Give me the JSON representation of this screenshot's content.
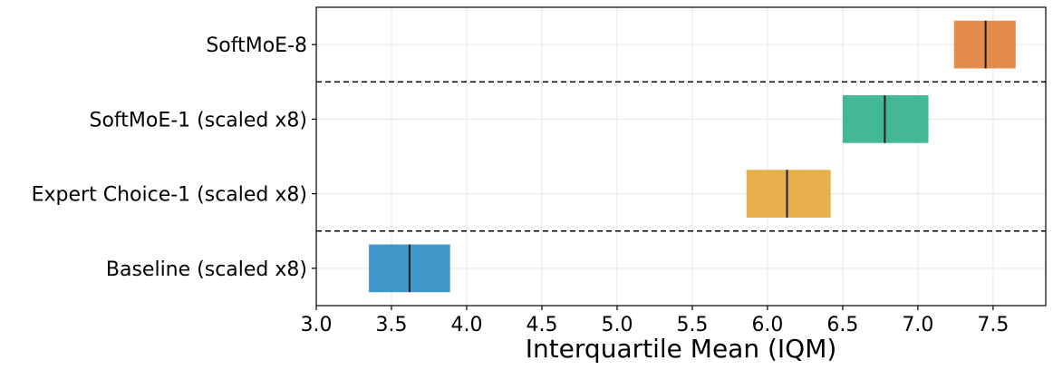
{
  "chart_data": {
    "type": "box",
    "xlabel": "Interquartile Mean (IQM)",
    "xlim": [
      3.0,
      7.85
    ],
    "xticks": [
      3.0,
      3.5,
      4.0,
      4.5,
      5.0,
      5.5,
      6.0,
      6.5,
      7.0,
      7.5
    ],
    "xtick_labels": [
      "3.0",
      "3.5",
      "4.0",
      "4.5",
      "5.0",
      "5.5",
      "6.0",
      "6.5",
      "7.0",
      "7.5"
    ],
    "grid": true,
    "categories": [
      "SoftMoE-8",
      "SoftMoE-1 (scaled x8)",
      "Expert Choice-1 (scaled x8)",
      "Baseline (scaled x8)"
    ],
    "series": [
      {
        "low": 7.24,
        "median": 7.45,
        "high": 7.65,
        "color": "#e07f3a"
      },
      {
        "low": 6.5,
        "median": 6.78,
        "high": 7.07,
        "color": "#2eb08c"
      },
      {
        "low": 5.86,
        "median": 6.13,
        "high": 6.42,
        "color": "#e6a73a"
      },
      {
        "low": 3.35,
        "median": 3.62,
        "high": 3.89,
        "color": "#2a8cc4"
      }
    ],
    "separators_after": [
      0,
      2
    ]
  }
}
